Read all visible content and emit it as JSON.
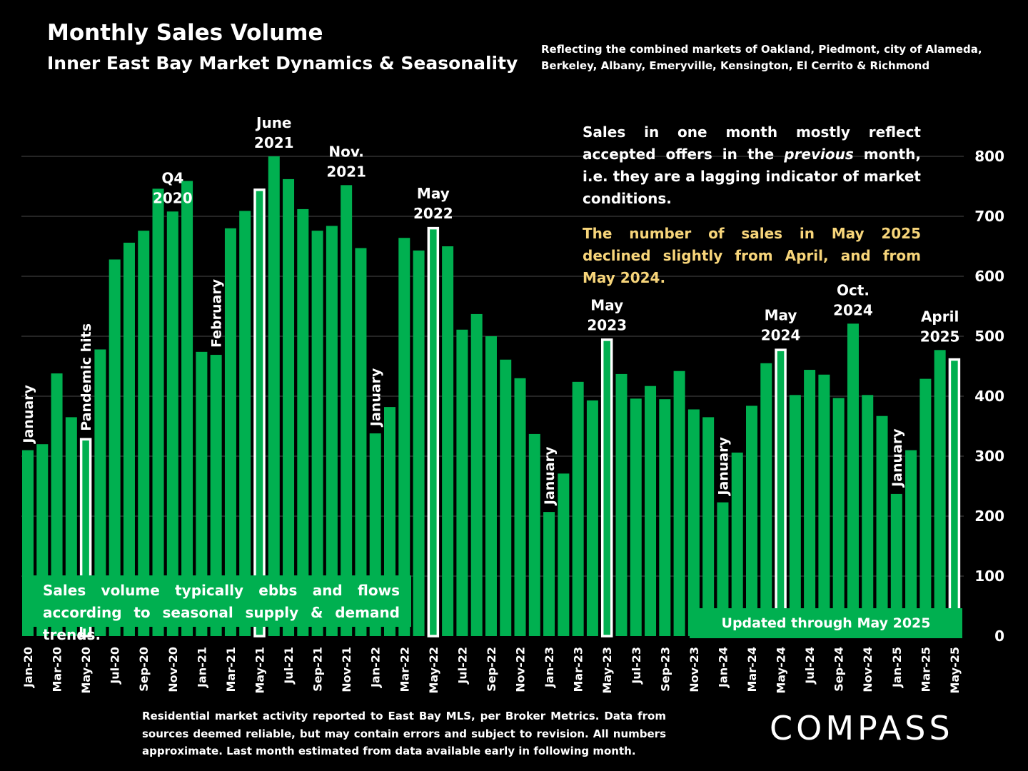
{
  "header": {
    "title": "Monthly Sales Volume",
    "subtitle": "Inner East Bay Market Dynamics & Seasonality",
    "coverage_line1": "Reflecting the combined markets of Oakland, Piedmont, city of Alameda,",
    "coverage_line2": "Berkeley, Albany, Emeryville, Kensington, El Cerrito & Richmond"
  },
  "notes": {
    "lagging_pre": "Sales in one month mostly reflect accepted offers in the ",
    "lagging_em": "previous",
    "lagging_post": " month, i.e. they are a lagging indicator of market conditions.",
    "latest": "The number of sales in May 2025 declined slightly from April, and from May 2024.",
    "seasonal": "Sales volume typically ebbs and flows according to seasonal supply & demand trends.",
    "updated": "Updated through May 2025"
  },
  "footnote": "Residential market activity reported to East Bay MLS, per Broker Metrics. Data from sources deemed reliable, but may contain errors and subject to revision. All numbers approximate. Last month estimated from data available early in following month.",
  "brand": "COMPASS",
  "colors": {
    "background": "#000000",
    "bar": "#00b050",
    "highlight_outline": "#ffffff",
    "accent_text": "#f7d57a"
  },
  "chart_data": {
    "type": "bar",
    "categories": [
      "Jan-20",
      "Feb-20",
      "Mar-20",
      "Apr-20",
      "May-20",
      "Jun-20",
      "Jul-20",
      "Aug-20",
      "Sep-20",
      "Oct-20",
      "Nov-20",
      "Dec-20",
      "Jan-21",
      "Feb-21",
      "Mar-21",
      "Apr-21",
      "May-21",
      "Jun-21",
      "Jul-21",
      "Aug-21",
      "Sep-21",
      "Oct-21",
      "Nov-21",
      "Dec-21",
      "Jan-22",
      "Feb-22",
      "Mar-22",
      "Apr-22",
      "May-22",
      "Jun-22",
      "Jul-22",
      "Aug-22",
      "Sep-22",
      "Oct-22",
      "Nov-22",
      "Dec-22",
      "Jan-23",
      "Feb-23",
      "Mar-23",
      "Apr-23",
      "May-23",
      "Jun-23",
      "Jul-23",
      "Aug-23",
      "Sep-23",
      "Oct-23",
      "Nov-23",
      "Dec-23",
      "Jan-24",
      "Feb-24",
      "Mar-24",
      "Apr-24",
      "May-24",
      "Jun-24",
      "Jul-24",
      "Aug-24",
      "Sep-24",
      "Oct-24",
      "Nov-24",
      "Dec-24",
      "Jan-25",
      "Feb-25",
      "Mar-25",
      "Apr-25",
      "May-25"
    ],
    "x_tick_labels": [
      "Jan-20",
      "Mar-20",
      "May-20",
      "Jul-20",
      "Sep-20",
      "Nov-20",
      "Jan-21",
      "Mar-21",
      "May-21",
      "Jul-21",
      "Sep-21",
      "Nov-21",
      "Jan-22",
      "Mar-22",
      "May-22",
      "Jul-22",
      "Sep-22",
      "Nov-22",
      "Jan-23",
      "Mar-23",
      "May-23",
      "Jul-23",
      "Sep-23",
      "Nov-23",
      "Jan-24",
      "Mar-24",
      "May-24",
      "Jul-24",
      "Sep-24",
      "Nov-24",
      "Jan-25",
      "Mar-25",
      "May-25"
    ],
    "values": [
      310,
      320,
      438,
      365,
      330,
      478,
      628,
      656,
      676,
      746,
      708,
      759,
      474,
      469,
      680,
      709,
      746,
      800,
      762,
      712,
      676,
      684,
      752,
      647,
      338,
      382,
      664,
      643,
      682,
      650,
      511,
      537,
      500,
      461,
      430,
      337,
      207,
      271,
      424,
      393,
      496,
      437,
      396,
      417,
      395,
      442,
      378,
      365,
      223,
      306,
      384,
      455,
      479,
      402,
      444,
      436,
      397,
      521,
      402,
      367,
      237,
      310,
      429,
      477,
      463
    ],
    "highlighted": [
      "May-20",
      "May-21",
      "May-22",
      "May-23",
      "May-24",
      "May-25"
    ],
    "y_ticks": [
      "0",
      "100",
      "200",
      "300",
      "400",
      "500",
      "600",
      "700",
      "800"
    ],
    "ylim": [
      0,
      800
    ],
    "grid": true,
    "y_axis_side": "right",
    "annotations": [
      {
        "category": "Jan-20",
        "label": "January",
        "orientation": "vertical"
      },
      {
        "category": "May-20",
        "label": "Pandemic hits",
        "orientation": "vertical"
      },
      {
        "category": "Nov-20",
        "label": "Q4 2020",
        "lines": [
          "Q4",
          "2020"
        ]
      },
      {
        "category": "Feb-21",
        "label": "February",
        "orientation": "vertical"
      },
      {
        "category": "Jun-21",
        "label": "June 2021",
        "lines": [
          "June",
          "2021"
        ]
      },
      {
        "category": "Nov-21",
        "label": "Nov. 2021",
        "lines": [
          "Nov.",
          "2021"
        ]
      },
      {
        "category": "Jan-22",
        "label": "January",
        "orientation": "vertical"
      },
      {
        "category": "May-22",
        "label": "May 2022",
        "lines": [
          "May",
          "2022"
        ]
      },
      {
        "category": "Jan-23",
        "label": "January",
        "orientation": "vertical"
      },
      {
        "category": "May-23",
        "label": "May 2023",
        "lines": [
          "May",
          "2023"
        ]
      },
      {
        "category": "Jan-24",
        "label": "January",
        "orientation": "vertical"
      },
      {
        "category": "May-24",
        "label": "May 2024",
        "lines": [
          "May",
          "2024"
        ]
      },
      {
        "category": "Oct-24",
        "label": "Oct. 2024",
        "lines": [
          "Oct.",
          "2024"
        ]
      },
      {
        "category": "Jan-25",
        "label": "January",
        "orientation": "vertical"
      },
      {
        "category": "Apr-25",
        "label": "April 2025",
        "lines": [
          "April",
          "2025"
        ]
      }
    ]
  }
}
